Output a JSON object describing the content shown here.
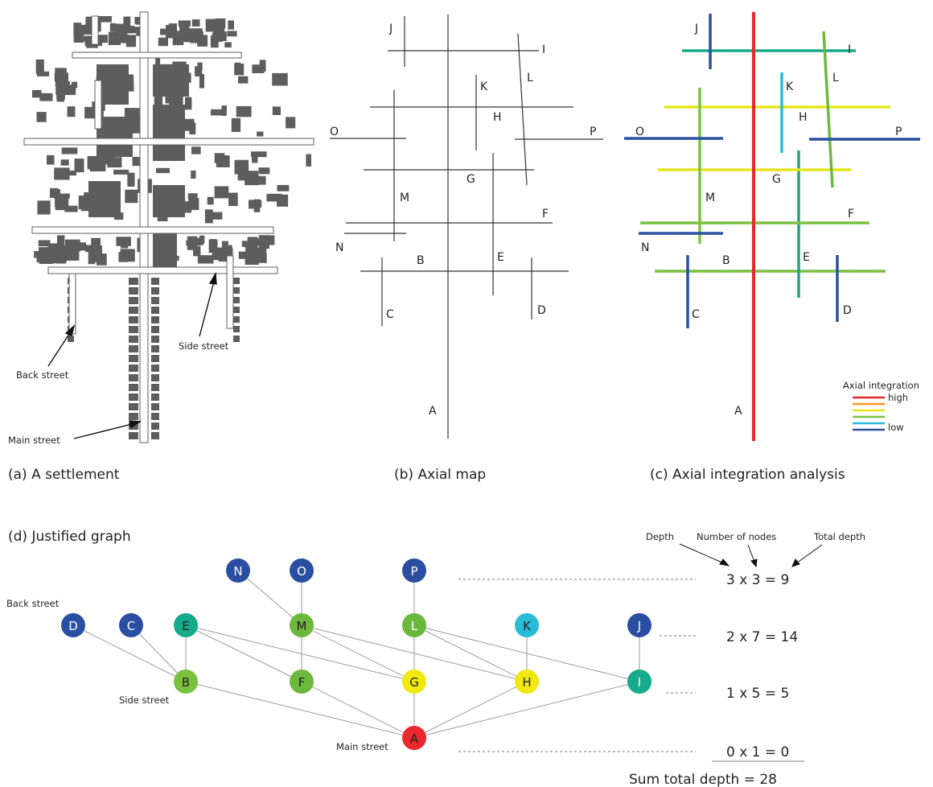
{
  "panels": {
    "a": {
      "caption": "(a) A settlement",
      "labels": {
        "back_street": "Back street",
        "side_street": "Side street",
        "main_street": "Main street"
      }
    },
    "b": {
      "caption": "(b) Axial map"
    },
    "c": {
      "caption": "(c) Axial integration analysis",
      "legend": {
        "title": "Axial integration",
        "high": "high",
        "low": "low",
        "colors": [
          "#e8282d",
          "#f7931e",
          "#e6e61e",
          "#7ac142",
          "#29bcd9",
          "#2a4fa2"
        ]
      }
    },
    "d": {
      "caption": "(d) Justified graph",
      "labels": {
        "back_street": "Back street",
        "side_street": "Side street",
        "main_street": "Main street"
      },
      "header": {
        "depth": "Depth",
        "number_of_nodes": "Number of nodes",
        "total_depth": "Total depth"
      },
      "rows": [
        {
          "equation": "3 x 3 = 9"
        },
        {
          "equation": "2 x 7 = 14"
        },
        {
          "equation": "1 x 5 = 5"
        },
        {
          "equation": "0 x 1 = 0"
        }
      ],
      "sum": "Sum total depth = 28"
    }
  },
  "axial_lines": [
    {
      "id": "A",
      "color": "#e8282d"
    },
    {
      "id": "B",
      "color": "#7ac142"
    },
    {
      "id": "C",
      "color": "#2a4fa2"
    },
    {
      "id": "D",
      "color": "#2a4fa2"
    },
    {
      "id": "E",
      "color": "#16a98a"
    },
    {
      "id": "F",
      "color": "#7ac142"
    },
    {
      "id": "G",
      "color": "#e6e61e"
    },
    {
      "id": "H",
      "color": "#e6e61e"
    },
    {
      "id": "I",
      "color": "#16a98a"
    },
    {
      "id": "J",
      "color": "#2a4fa2"
    },
    {
      "id": "K",
      "color": "#29bcd9"
    },
    {
      "id": "L",
      "color": "#6cb83c"
    },
    {
      "id": "M",
      "color": "#7ac142"
    },
    {
      "id": "N",
      "color": "#2a4fa2"
    },
    {
      "id": "O",
      "color": "#2a4fa2"
    },
    {
      "id": "P",
      "color": "#2a4fa2"
    }
  ],
  "graph": {
    "nodes": [
      {
        "id": "N",
        "depth": 3,
        "color": "#2a4fa2",
        "text": "#ffffff"
      },
      {
        "id": "O",
        "depth": 3,
        "color": "#2a4fa2",
        "text": "#ffffff"
      },
      {
        "id": "P",
        "depth": 3,
        "color": "#2a4fa2",
        "text": "#ffffff"
      },
      {
        "id": "D",
        "depth": 2,
        "color": "#2a4fa2",
        "text": "#ffffff"
      },
      {
        "id": "C",
        "depth": 2,
        "color": "#2a4fa2",
        "text": "#ffffff"
      },
      {
        "id": "E",
        "depth": 2,
        "color": "#16a98a",
        "text": "#222222"
      },
      {
        "id": "M",
        "depth": 2,
        "color": "#6cb83c",
        "text": "#222222"
      },
      {
        "id": "L",
        "depth": 2,
        "color": "#6cb83c",
        "text": "#ffffff"
      },
      {
        "id": "K",
        "depth": 2,
        "color": "#29bcd9",
        "text": "#222222"
      },
      {
        "id": "J",
        "depth": 2,
        "color": "#2a4fa2",
        "text": "#ffffff"
      },
      {
        "id": "B",
        "depth": 1,
        "color": "#7ac142",
        "text": "#222222"
      },
      {
        "id": "F",
        "depth": 1,
        "color": "#6cb83c",
        "text": "#222222"
      },
      {
        "id": "G",
        "depth": 1,
        "color": "#f2e80f",
        "text": "#222222"
      },
      {
        "id": "H",
        "depth": 1,
        "color": "#f2e80f",
        "text": "#222222"
      },
      {
        "id": "I",
        "depth": 1,
        "color": "#16a98a",
        "text": "#ffffff"
      },
      {
        "id": "A",
        "depth": 0,
        "color": "#e8282d",
        "text": "#222222"
      }
    ],
    "edges": [
      [
        "N",
        "M"
      ],
      [
        "O",
        "M"
      ],
      [
        "P",
        "L"
      ],
      [
        "D",
        "B"
      ],
      [
        "C",
        "B"
      ],
      [
        "E",
        "B"
      ],
      [
        "E",
        "F"
      ],
      [
        "E",
        "G"
      ],
      [
        "M",
        "F"
      ],
      [
        "M",
        "G"
      ],
      [
        "M",
        "H"
      ],
      [
        "L",
        "G"
      ],
      [
        "L",
        "H"
      ],
      [
        "L",
        "I"
      ],
      [
        "K",
        "H"
      ],
      [
        "J",
        "I"
      ],
      [
        "B",
        "A"
      ],
      [
        "F",
        "A"
      ],
      [
        "G",
        "A"
      ],
      [
        "H",
        "A"
      ],
      [
        "I",
        "A"
      ]
    ]
  }
}
